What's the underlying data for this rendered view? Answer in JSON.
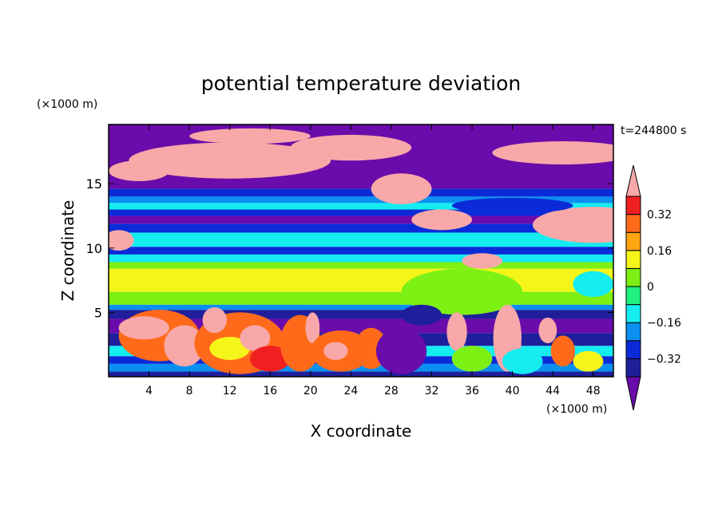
{
  "chart_data": {
    "type": "heatmap",
    "title": "potential temperature deviation",
    "xlabel": "X coordinate",
    "ylabel": "Z coordinate",
    "x_units": "(×1000 m)",
    "y_units": "(×1000 m)",
    "time_label": "t=244800 s",
    "xlim": [
      0,
      50
    ],
    "ylim": [
      0,
      19.6
    ],
    "x_ticks": [
      4,
      8,
      12,
      16,
      20,
      24,
      28,
      32,
      36,
      40,
      44,
      48
    ],
    "y_ticks": [
      5,
      10,
      15
    ],
    "colorbar": {
      "levels": [
        -0.4,
        -0.32,
        -0.24,
        -0.16,
        -0.08,
        0,
        0.08,
        0.16,
        0.24,
        0.32,
        0.4
      ],
      "tick_labels": [
        "0.32",
        "0.16",
        "0",
        "−0.16",
        "−0.32"
      ],
      "tick_values": [
        0.32,
        0.16,
        0,
        -0.16,
        -0.32
      ],
      "colors": [
        "#6a0bab",
        "#1f1f9c",
        "#0b2bd8",
        "#0a90f0",
        "#14ecf0",
        "#1ff07f",
        "#7df014",
        "#f5f51a",
        "#ffa510",
        "#ff6a1a",
        "#f12020",
        "#f8a8a8"
      ],
      "extend": "both"
    },
    "layers": [
      {
        "z_range": [
          0,
          0.4
        ],
        "value": -0.36
      },
      {
        "z_range": [
          0.4,
          1.0
        ],
        "value": -0.2
      },
      {
        "z_range": [
          1.0,
          1.6
        ],
        "value": -0.28
      },
      {
        "z_range": [
          1.6,
          2.4
        ],
        "value": -0.12
      },
      {
        "z_range": [
          2.4,
          3.4
        ],
        "value": -0.36
      },
      {
        "z_range": [
          3.4,
          4.5
        ],
        "value": -0.44
      },
      {
        "z_range": [
          4.5,
          5.2
        ],
        "value": -0.36
      },
      {
        "z_range": [
          5.2,
          5.6
        ],
        "value": -0.2
      },
      {
        "z_range": [
          5.6,
          6.6
        ],
        "value": 0.04
      },
      {
        "z_range": [
          6.6,
          8.4
        ],
        "value": 0.12
      },
      {
        "z_range": [
          8.4,
          8.9
        ],
        "value": 0.04
      },
      {
        "z_range": [
          8.9,
          9.5
        ],
        "value": -0.12
      },
      {
        "z_range": [
          9.5,
          10.1
        ],
        "value": -0.28
      },
      {
        "z_range": [
          10.1,
          11.2
        ],
        "value": -0.12
      },
      {
        "z_range": [
          11.2,
          11.9
        ],
        "value": -0.28
      },
      {
        "z_range": [
          11.9,
          12.5
        ],
        "value": -0.44
      },
      {
        "z_range": [
          12.5,
          13.0
        ],
        "value": -0.28
      },
      {
        "z_range": [
          13.0,
          13.5
        ],
        "value": -0.12
      },
      {
        "z_range": [
          13.5,
          14.0
        ],
        "value": -0.2
      },
      {
        "z_range": [
          14.0,
          14.6
        ],
        "value": -0.28
      },
      {
        "z_range": [
          14.6,
          19.6
        ],
        "value": -0.44
      }
    ],
    "blobs": [
      {
        "x": 12,
        "z": 16.8,
        "rx": 10,
        "rz": 1.4,
        "value": 0.44
      },
      {
        "x": 24,
        "z": 17.8,
        "rx": 6,
        "rz": 1.0,
        "value": 0.44
      },
      {
        "x": 14,
        "z": 18.7,
        "rx": 6,
        "rz": 0.6,
        "value": 0.44
      },
      {
        "x": 3,
        "z": 16.0,
        "rx": 3,
        "rz": 0.8,
        "value": 0.44
      },
      {
        "x": 29,
        "z": 14.6,
        "rx": 3,
        "rz": 1.2,
        "value": 0.44
      },
      {
        "x": 33,
        "z": 12.2,
        "rx": 3,
        "rz": 0.8,
        "value": 0.44
      },
      {
        "x": 45,
        "z": 17.4,
        "rx": 7,
        "rz": 0.9,
        "value": 0.44
      },
      {
        "x": 48,
        "z": 11.8,
        "rx": 6,
        "rz": 1.4,
        "value": 0.44
      },
      {
        "x": 37,
        "z": 9.0,
        "rx": 2,
        "rz": 0.6,
        "value": 0.44
      },
      {
        "x": 1,
        "z": 10.6,
        "rx": 1.5,
        "rz": 0.8,
        "value": 0.44
      },
      {
        "x": 40,
        "z": 13.3,
        "rx": 6,
        "rz": 0.6,
        "value": -0.28
      },
      {
        "x": 35,
        "z": 6.6,
        "rx": 6,
        "rz": 1.8,
        "value": 0.04
      },
      {
        "x": 48,
        "z": 7.2,
        "rx": 2,
        "rz": 1.0,
        "value": -0.12
      },
      {
        "x": 5,
        "z": 3.2,
        "rx": 4,
        "rz": 2.0,
        "value": 0.28
      },
      {
        "x": 3.5,
        "z": 3.8,
        "rx": 2.5,
        "rz": 0.9,
        "value": 0.44
      },
      {
        "x": 7.5,
        "z": 2.4,
        "rx": 2,
        "rz": 1.6,
        "value": 0.44
      },
      {
        "x": 13,
        "z": 2.6,
        "rx": 4.5,
        "rz": 2.4,
        "value": 0.24
      },
      {
        "x": 12,
        "z": 2.2,
        "rx": 2.0,
        "rz": 0.9,
        "value": 0.12
      },
      {
        "x": 10.5,
        "z": 4.4,
        "rx": 1.2,
        "rz": 1.0,
        "value": 0.44
      },
      {
        "x": 14.5,
        "z": 3.0,
        "rx": 1.5,
        "rz": 1.0,
        "value": 0.44
      },
      {
        "x": 16,
        "z": 1.4,
        "rx": 2,
        "rz": 1.0,
        "value": 0.34
      },
      {
        "x": 19,
        "z": 2.6,
        "rx": 2,
        "rz": 2.2,
        "value": 0.28
      },
      {
        "x": 20.2,
        "z": 3.8,
        "rx": 0.7,
        "rz": 1.2,
        "value": 0.44
      },
      {
        "x": 23,
        "z": 2.0,
        "rx": 3,
        "rz": 1.6,
        "value": 0.3
      },
      {
        "x": 22.5,
        "z": 2.0,
        "rx": 1.2,
        "rz": 0.7,
        "value": 0.44
      },
      {
        "x": 26,
        "z": 2.2,
        "rx": 1.6,
        "rz": 1.6,
        "value": 0.24
      },
      {
        "x": 29,
        "z": 2.0,
        "rx": 2.5,
        "rz": 1.8,
        "value": -0.44
      },
      {
        "x": 34.5,
        "z": 3.5,
        "rx": 1.0,
        "rz": 1.5,
        "value": 0.44
      },
      {
        "x": 36,
        "z": 1.4,
        "rx": 2,
        "rz": 1.0,
        "value": 0.04
      },
      {
        "x": 39.5,
        "z": 3.0,
        "rx": 1.4,
        "rz": 2.6,
        "value": 0.44
      },
      {
        "x": 41,
        "z": 1.2,
        "rx": 2,
        "rz": 1.0,
        "value": -0.12
      },
      {
        "x": 43.5,
        "z": 3.6,
        "rx": 0.9,
        "rz": 1.0,
        "value": 0.44
      },
      {
        "x": 45,
        "z": 2.0,
        "rx": 1.2,
        "rz": 1.2,
        "value": 0.28
      },
      {
        "x": 47.5,
        "z": 1.2,
        "rx": 1.5,
        "rz": 0.8,
        "value": 0.12
      },
      {
        "x": 31,
        "z": 4.8,
        "rx": 2,
        "rz": 0.8,
        "value": -0.36
      }
    ]
  }
}
